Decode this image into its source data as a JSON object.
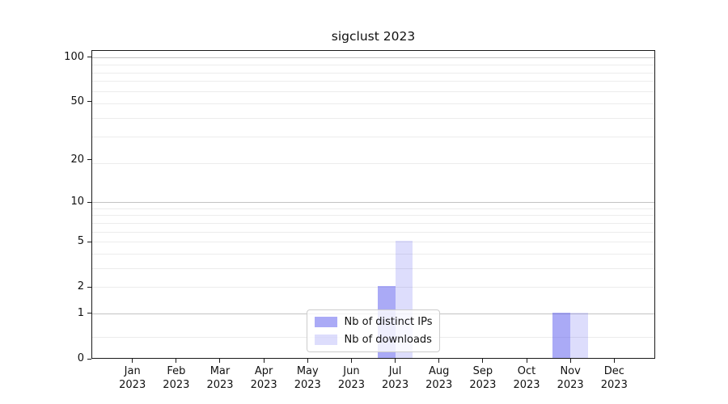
{
  "chart_data": {
    "type": "bar",
    "title": "sigclust 2023",
    "x": {
      "months": [
        "Jan",
        "Feb",
        "Mar",
        "Apr",
        "May",
        "Jun",
        "Jul",
        "Aug",
        "Sep",
        "Oct",
        "Nov",
        "Dec"
      ],
      "year": "2023"
    },
    "series": [
      {
        "name": "Nb of distinct IPs",
        "color": "rgba(85,85,238,0.5)",
        "values": [
          0,
          0,
          0,
          0,
          0,
          0,
          2,
          0,
          0,
          0,
          1,
          0
        ]
      },
      {
        "name": "Nb of downloads",
        "color": "rgba(85,85,238,0.2)",
        "values": [
          0,
          0,
          0,
          0,
          0,
          0,
          5,
          0,
          0,
          0,
          1,
          0
        ]
      }
    ],
    "yscale": "log1p",
    "ymax": 111.5,
    "yticks": [
      0,
      1,
      2,
      5,
      10,
      20,
      50,
      100
    ],
    "grid": {
      "major": [
        1,
        10,
        100
      ],
      "minor": [
        0.4,
        2,
        3,
        4,
        5,
        6,
        7,
        8,
        9,
        19,
        29,
        39,
        49,
        59,
        69,
        79,
        89
      ],
      "major_color": "#c3c3c3",
      "minor_color": "#ececec"
    },
    "legend": {
      "position": "lower center"
    }
  }
}
